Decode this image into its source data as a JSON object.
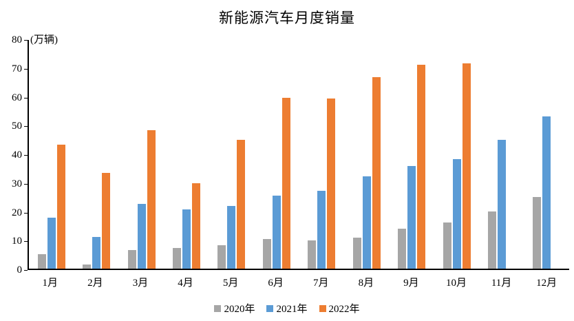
{
  "title": "新能源汽车月度销量",
  "y_axis": {
    "unit_label": "(万辆)",
    "ticks": [
      80,
      70,
      60,
      50,
      40,
      30,
      20,
      10,
      0
    ]
  },
  "chart_data": {
    "type": "bar",
    "title": "新能源汽车月度销量",
    "xlabel": "",
    "ylabel": "万辆",
    "categories": [
      "1月",
      "2月",
      "3月",
      "4月",
      "5月",
      "6月",
      "7月",
      "8月",
      "9月",
      "10月",
      "11月",
      "12月"
    ],
    "series": [
      {
        "name": "2020年",
        "color": "#A6A6A6",
        "values": [
          5.0,
          1.5,
          6.5,
          7.2,
          8.2,
          10.4,
          9.8,
          10.9,
          13.8,
          16.0,
          20.0,
          24.8
        ]
      },
      {
        "name": "2021年",
        "color": "#5B9BD5",
        "values": [
          17.8,
          11.0,
          22.5,
          20.6,
          21.7,
          25.4,
          27.1,
          32.0,
          35.6,
          38.1,
          44.9,
          53.0
        ]
      },
      {
        "name": "2022年",
        "color": "#ED7D31",
        "values": [
          43.0,
          33.4,
          48.1,
          29.7,
          44.7,
          59.5,
          59.2,
          66.5,
          70.8,
          71.3,
          null,
          null
        ]
      }
    ],
    "ylim": [
      0,
      80
    ],
    "ytick_step": 10,
    "grid": false,
    "legend_position": "bottom",
    "axis_color": "#000000",
    "background_color": "#ffffff"
  }
}
